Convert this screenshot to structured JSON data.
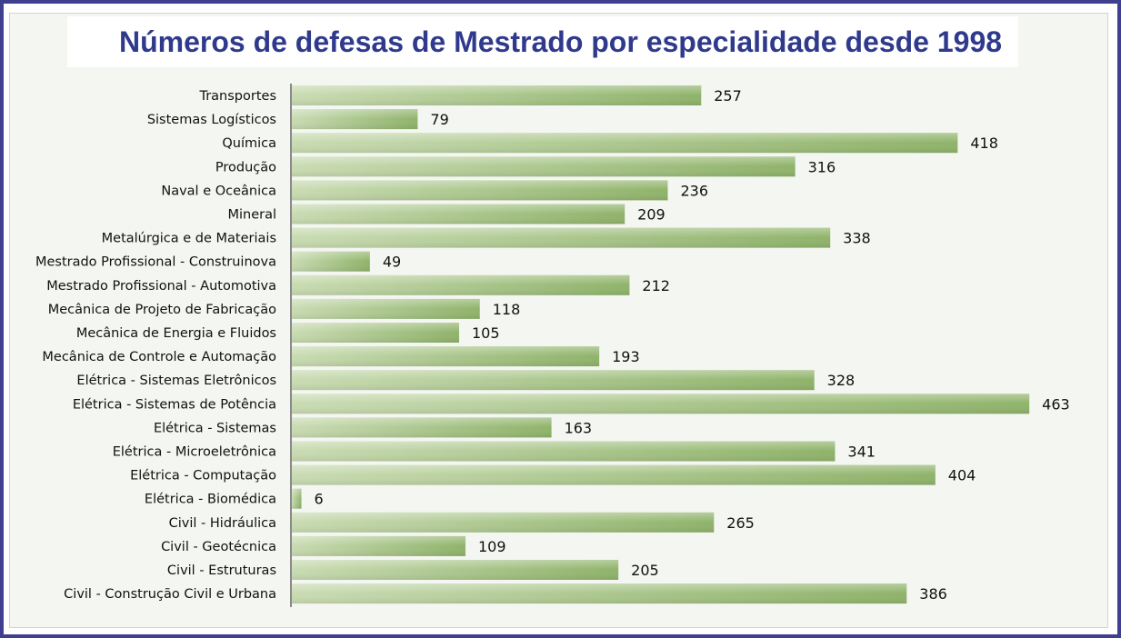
{
  "chart_data": {
    "type": "bar",
    "orientation": "horizontal",
    "title": "Números de defesas de Mestrado por especialidade desde 1998",
    "xlabel": "",
    "ylabel": "",
    "grid": false,
    "legend": "none",
    "xlim": [
      0,
      470
    ],
    "bar_color_start": "#c9dbb2",
    "bar_color_end": "#8fb36a",
    "categories": [
      "Transportes",
      "Sistemas Logísticos",
      "Química",
      "Produção",
      "Naval e Oceânica",
      "Mineral",
      "Metalúrgica e de Materiais",
      "Mestrado Profissional - Construinova",
      "Mestrado Profissional - Automotiva",
      "Mecânica de Projeto de Fabricação",
      "Mecânica de Energia e Fluidos",
      "Mecânica de Controle e Automação",
      "Elétrica - Sistemas Eletrônicos",
      "Elétrica - Sistemas de Potência",
      "Elétrica - Sistemas",
      "Elétrica - Microeletrônica",
      "Elétrica - Computação",
      "Elétrica - Biomédica",
      "Civil - Hidráulica",
      "Civil - Geotécnica",
      "Civil - Estruturas",
      "Civil - Construção Civil e Urbana"
    ],
    "values": [
      257,
      79,
      418,
      316,
      236,
      209,
      338,
      49,
      212,
      118,
      105,
      193,
      328,
      463,
      163,
      341,
      404,
      6,
      265,
      109,
      205,
      386
    ]
  }
}
